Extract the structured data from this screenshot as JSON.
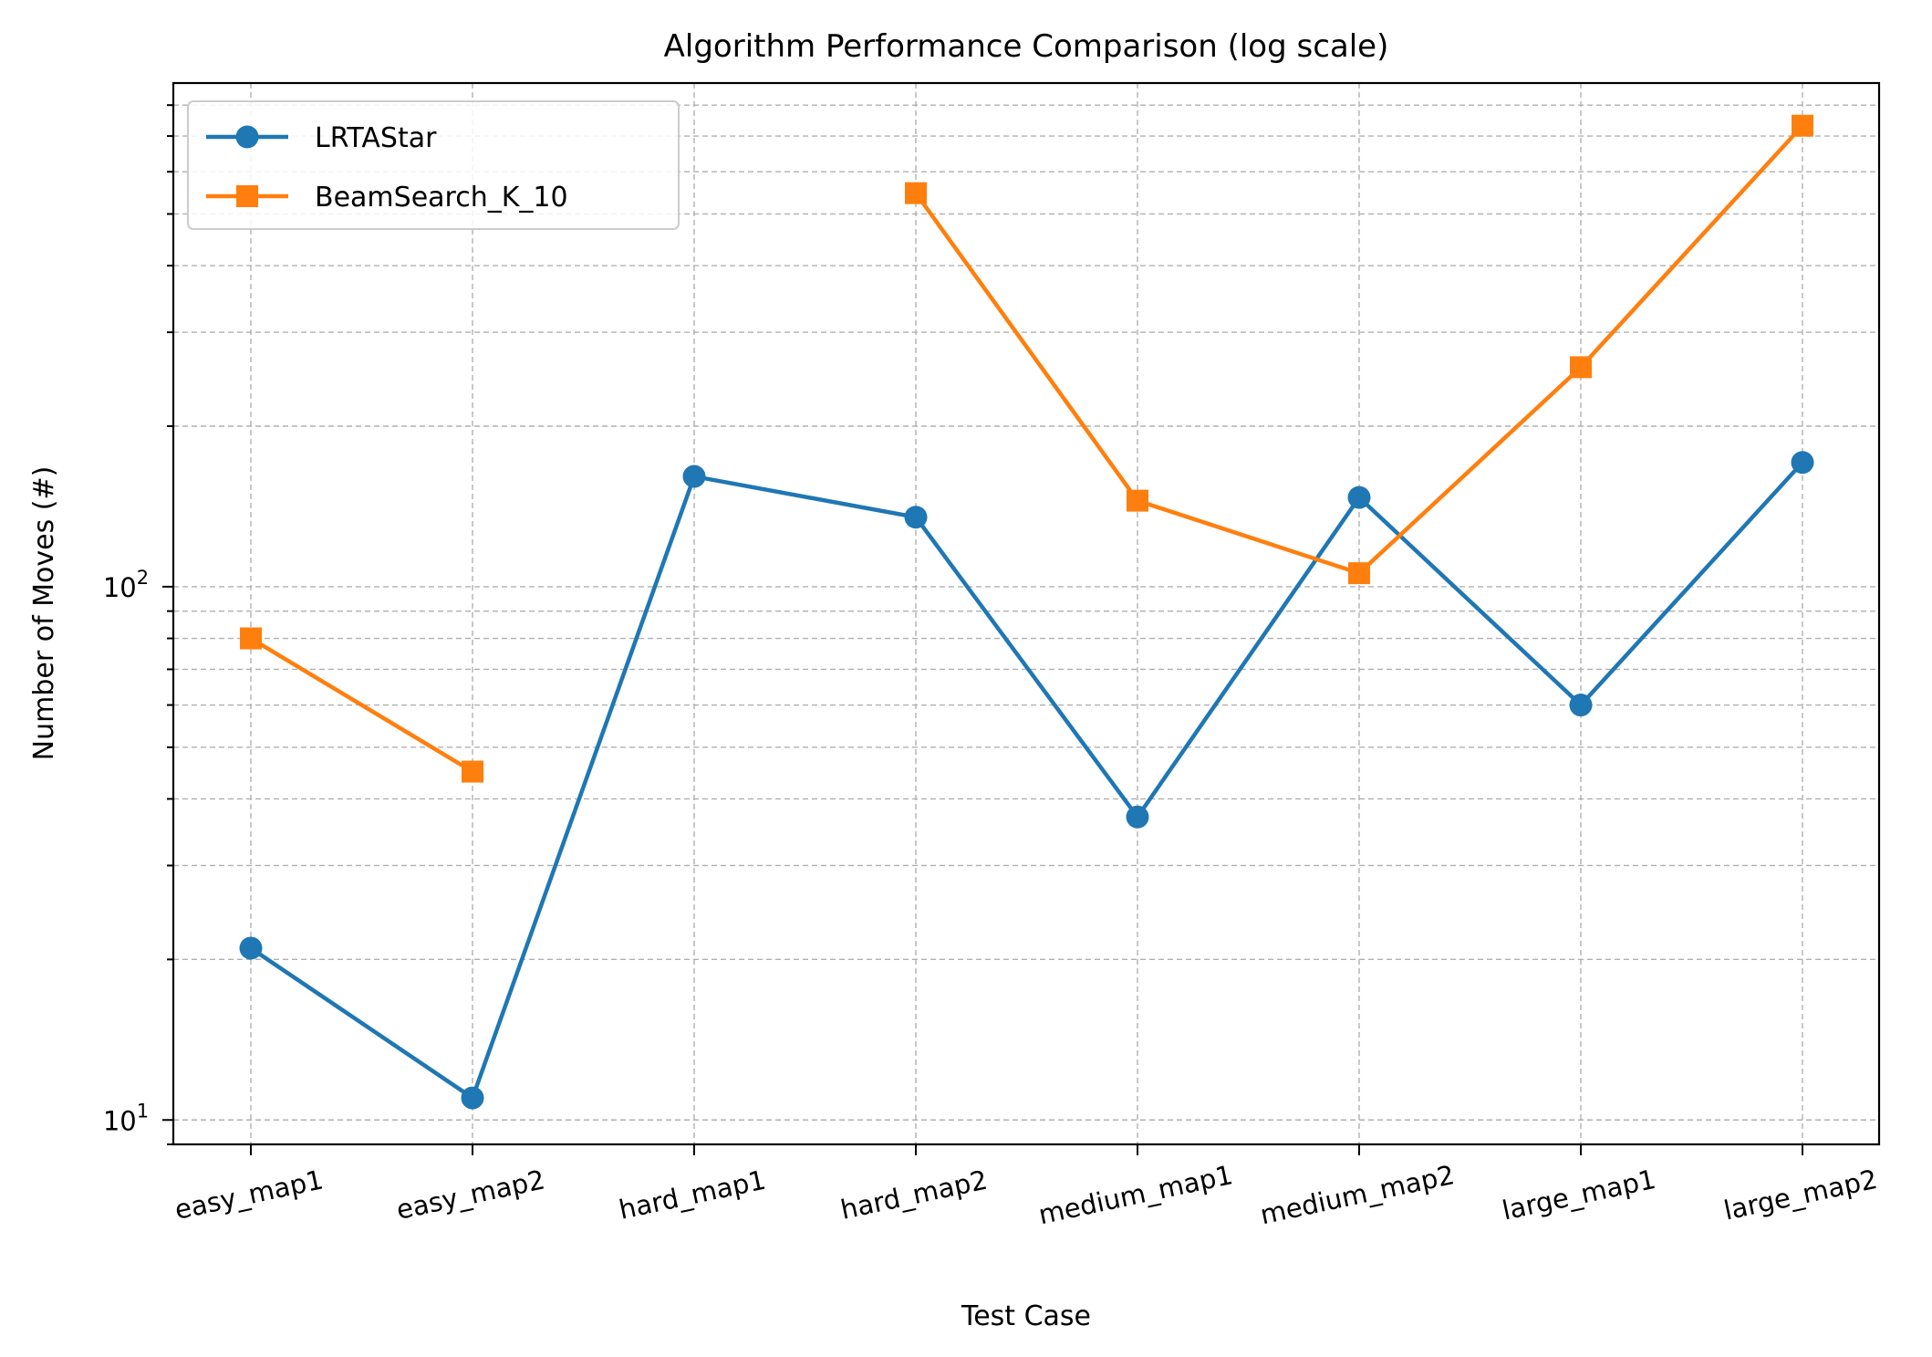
{
  "chart_data": {
    "type": "line",
    "title": "Algorithm Performance Comparison (log scale)",
    "xlabel": "Test Case",
    "ylabel": "Number of Moves (#)",
    "yscale": "log",
    "ylim": [
      9,
      880
    ],
    "categories": [
      "easy_map1",
      "easy_map2",
      "hard_map1",
      "hard_map2",
      "medium_map1",
      "medium_map2",
      "large_map1",
      "large_map2"
    ],
    "y_ticks": [
      {
        "value": 10,
        "base": "10",
        "exp": "1"
      },
      {
        "value": 100,
        "base": "10",
        "exp": "2"
      }
    ],
    "grid": true,
    "legend_position": "top-left",
    "series": [
      {
        "name": "LRTAStar",
        "color": "#1f77b4",
        "marker": "circle",
        "values": [
          21,
          11,
          161,
          135,
          37,
          147,
          60,
          171
        ]
      },
      {
        "name": "BeamSearch_K_10",
        "color": "#ff7f0e",
        "marker": "square",
        "values": [
          80,
          45,
          null,
          547,
          145,
          106,
          258,
          732
        ]
      }
    ]
  }
}
